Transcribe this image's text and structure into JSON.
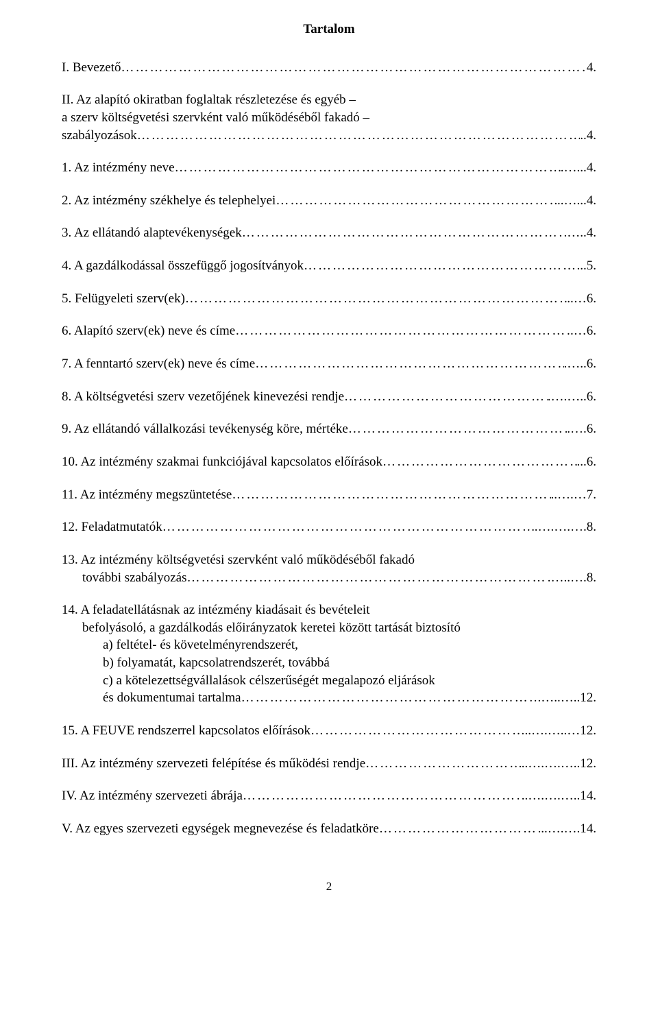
{
  "title": "Tartalom",
  "entries": [
    {
      "kind": "simple",
      "label": "I. Bevezető",
      "page": "4."
    },
    {
      "kind": "multi",
      "lines": [
        "II. Az alapító okiratban foglaltak részletezése és egyéb –",
        "a szerv költségvetési szervként való működéséből fakadó –"
      ],
      "final": "szabályozások",
      "page": "..4."
    },
    {
      "kind": "simple",
      "label": "1. Az intézmény neve",
      "page": ".…...4."
    },
    {
      "kind": "simple",
      "label": "2. Az intézmény székhelye és telephelyei",
      "page": "..…...4."
    },
    {
      "kind": "simple",
      "label": "3. Az ellátandó alaptevékenységek",
      "page": ".…..4."
    },
    {
      "kind": "simple",
      "label": "4. A gazdálkodással összefüggő jogosítványok",
      "page": "...5."
    },
    {
      "kind": "simple",
      "label": "5. Felügyeleti szerv(ek)",
      "page": "..…6."
    },
    {
      "kind": "simple",
      "label": "6. Alapító szerv(ek) neve és címe",
      "page": ".…6."
    },
    {
      "kind": "simple",
      "label": "7. A fenntartó szerv(ek) neve és címe",
      "page": ".…..6."
    },
    {
      "kind": "simple",
      "label": "8. A költségvetési szerv vezetőjének kinevezési rendje",
      "page": ".….…..6."
    },
    {
      "kind": "simple",
      "label": "9. Az ellátandó vállalkozási tevékenység köre, mértéke",
      "page": ".….6."
    },
    {
      "kind": "simple",
      "label": "10. Az intézmény szakmai funkciójával kapcsolatos előírások",
      "page": "...6."
    },
    {
      "kind": "simple",
      "label": "11. Az intézmény megszüntetése",
      "page": "..….…7."
    },
    {
      "kind": "simple",
      "label": "12. Feladatmutatók",
      "page": ".….….….8."
    },
    {
      "kind": "multi",
      "lines": [
        "13. Az intézmény költségvetési szervként való működéséből fakadó"
      ],
      "indent": true,
      "final": "további szabályozás",
      "page": ".…..….8."
    },
    {
      "kind": "multi",
      "lines": [
        "14. A feladatellátásnak az intézmény kiadásait és bevételeit"
      ],
      "sub": [
        {
          "text": "befolyásoló, a gazdálkodás előirányzatok keretei között tartását biztosító",
          "indent": 1
        },
        {
          "text": "a) feltétel- és követelményrendszerét,",
          "indent": 2
        },
        {
          "text": "b) folyamatát, kapcsolatrendszerét, továbbá",
          "indent": 2
        },
        {
          "text": "c) a kötelezettségvállalások célszerűségét megalapozó eljárások",
          "indent": 2
        }
      ],
      "finalIndent": 2,
      "final": "és dokumentumai tartalma",
      "page": ".…..…..12."
    },
    {
      "kind": "simple",
      "label": "15. A FEUVE rendszerrel kapcsolatos előírások",
      "page": "..….…..…12."
    },
    {
      "kind": "simple",
      "label": "III. Az intézmény szervezeti felépítése és működési rendje",
      "page": "..….….…..12."
    },
    {
      "kind": "simple",
      "label": "IV. Az intézmény szervezeti ábrája",
      "page": "..….….…..14."
    },
    {
      "kind": "simple",
      "label": "V. Az egyes szervezeti egységek megnevezése és feladatköre",
      "page": "..….….14."
    }
  ],
  "footer": "2"
}
